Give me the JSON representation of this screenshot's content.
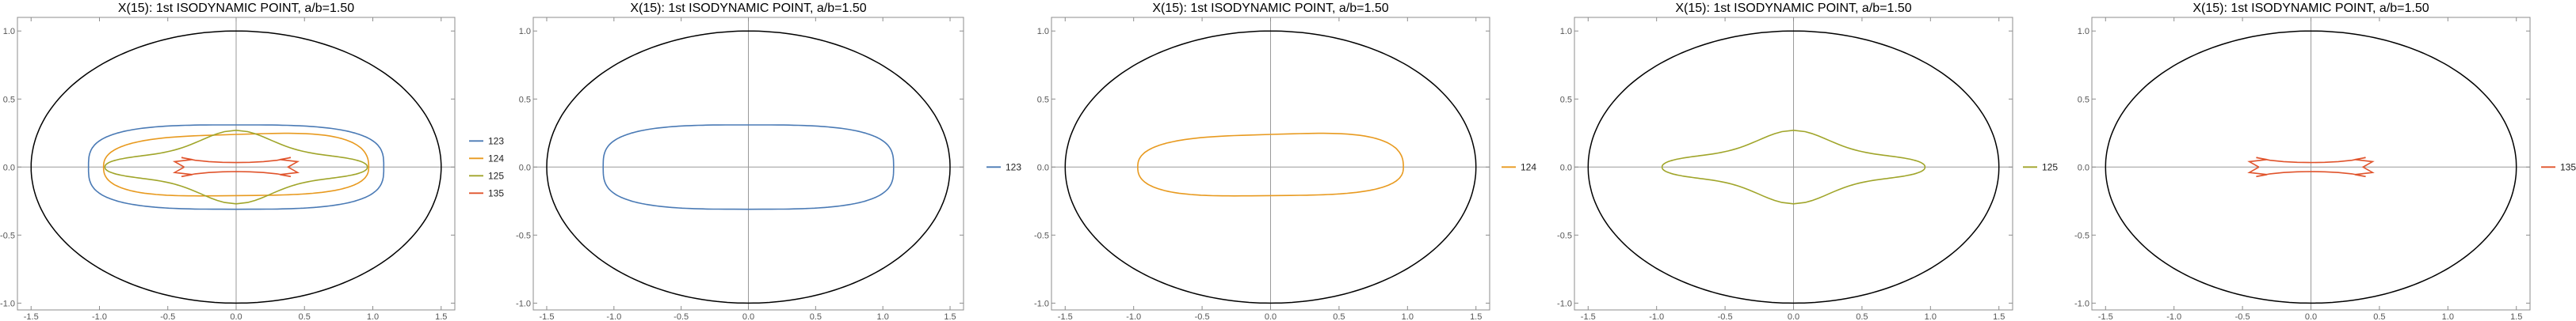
{
  "chart_data": [
    {
      "type": "line",
      "title": "X(15): 1st ISODYNAMIC POINT, a/b=1.50",
      "xlabel": "",
      "ylabel": "",
      "xlim": [
        -1.6,
        1.6
      ],
      "ylim": [
        -1.05,
        1.1
      ],
      "xticks": [
        "-1.5",
        "-1.0",
        "-0.5",
        "0.0",
        "0.5",
        "1.0",
        "1.5"
      ],
      "yticks": [
        "-1.0",
        "-0.5",
        "0.0",
        "0.5",
        "1.0"
      ],
      "grid": false,
      "legend": "right",
      "series": [
        {
          "name": "123",
          "color": "#4a7ab5"
        },
        {
          "name": "124",
          "color": "#e89a1f"
        },
        {
          "name": "125",
          "color": "#a0a52a"
        },
        {
          "name": "135",
          "color": "#e0532b"
        }
      ]
    },
    {
      "type": "line",
      "title": "X(15): 1st ISODYNAMIC POINT, a/b=1.50",
      "xlabel": "",
      "ylabel": "",
      "xlim": [
        -1.6,
        1.6
      ],
      "ylim": [
        -1.05,
        1.1
      ],
      "xticks": [
        "-1.5",
        "-1.0",
        "-0.5",
        "0.0",
        "0.5",
        "1.0",
        "1.5"
      ],
      "yticks": [
        "-1.0",
        "-0.5",
        "0.0",
        "0.5",
        "1.0"
      ],
      "grid": false,
      "legend": "right",
      "series": [
        {
          "name": "123",
          "color": "#4a7ab5"
        }
      ]
    },
    {
      "type": "line",
      "title": "X(15): 1st ISODYNAMIC POINT, a/b=1.50",
      "xlabel": "",
      "ylabel": "",
      "xlim": [
        -1.6,
        1.6
      ],
      "ylim": [
        -1.05,
        1.1
      ],
      "xticks": [
        "-1.5",
        "-1.0",
        "-0.5",
        "0.0",
        "0.5",
        "1.0",
        "1.5"
      ],
      "yticks": [
        "-1.0",
        "-0.5",
        "0.0",
        "0.5",
        "1.0"
      ],
      "grid": false,
      "legend": "right",
      "series": [
        {
          "name": "124",
          "color": "#e89a1f"
        }
      ]
    },
    {
      "type": "line",
      "title": "X(15): 1st ISODYNAMIC POINT, a/b=1.50",
      "xlabel": "",
      "ylabel": "",
      "xlim": [
        -1.6,
        1.6
      ],
      "ylim": [
        -1.05,
        1.1
      ],
      "xticks": [
        "-1.5",
        "-1.0",
        "-0.5",
        "0.0",
        "0.5",
        "1.0",
        "1.5"
      ],
      "yticks": [
        "-1.0",
        "-0.5",
        "0.0",
        "0.5",
        "1.0"
      ],
      "grid": false,
      "legend": "right",
      "series": [
        {
          "name": "125",
          "color": "#a0a52a"
        }
      ]
    },
    {
      "type": "line",
      "title": "X(15): 1st ISODYNAMIC POINT, a/b=1.50",
      "xlabel": "",
      "ylabel": "",
      "xlim": [
        -1.6,
        1.6
      ],
      "ylim": [
        -1.05,
        1.1
      ],
      "xticks": [
        "-1.5",
        "-1.0",
        "-0.5",
        "0.0",
        "0.5",
        "1.0",
        "1.5"
      ],
      "yticks": [
        "-1.0",
        "-0.5",
        "0.0",
        "0.5",
        "1.0"
      ],
      "grid": false,
      "legend": "right",
      "series": [
        {
          "name": "135",
          "color": "#e0532b"
        }
      ]
    }
  ]
}
